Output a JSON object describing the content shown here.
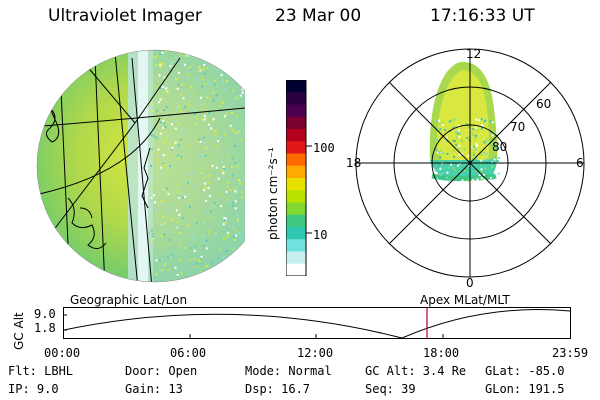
{
  "header": {
    "instrument": "Ultraviolet Imager",
    "date": "23 Mar 00",
    "time": "17:16:33 UT"
  },
  "colorbar": {
    "unit": "photon cm⁻²s⁻¹",
    "ticks": [
      "100",
      "10"
    ],
    "colors": [
      "#000033",
      "#2b0040",
      "#4c0050",
      "#7a0030",
      "#b4001e",
      "#e01818",
      "#ff6a00",
      "#ffaa00",
      "#e8e000",
      "#b8e000",
      "#80d830",
      "#40c880",
      "#30c8b0",
      "#70e0e0",
      "#c8f0f0",
      "#ffffff"
    ]
  },
  "polar_plot": {
    "labels": {
      "top": "12",
      "left": "18",
      "right": "6",
      "bottom": "0"
    },
    "lat_labels": [
      "60",
      "70",
      "80"
    ]
  },
  "panels": {
    "left_label": "Geographic Lat/Lon",
    "right_label": "Apex MLat/MLT"
  },
  "altitude_plot": {
    "ylabel": "GC Alt",
    "yticks": [
      "9.0",
      "1.8"
    ],
    "xticks": [
      "00:00",
      "06:00",
      "12:00",
      "18:00",
      "23:59"
    ],
    "marker_time": "17:16"
  },
  "info": {
    "flt": "Flt: LBHL",
    "door": "Door: Open",
    "mode": "Mode: Normal",
    "gcalt": "GC Alt: 3.4 Re",
    "glat": "GLat: -85.0",
    "ip": "IP:  9.0",
    "gain": "Gain: 13",
    "dsp": "Dsp:   16.7",
    "seq": "Seq: 39",
    "glon": "GLon: 191.5"
  }
}
